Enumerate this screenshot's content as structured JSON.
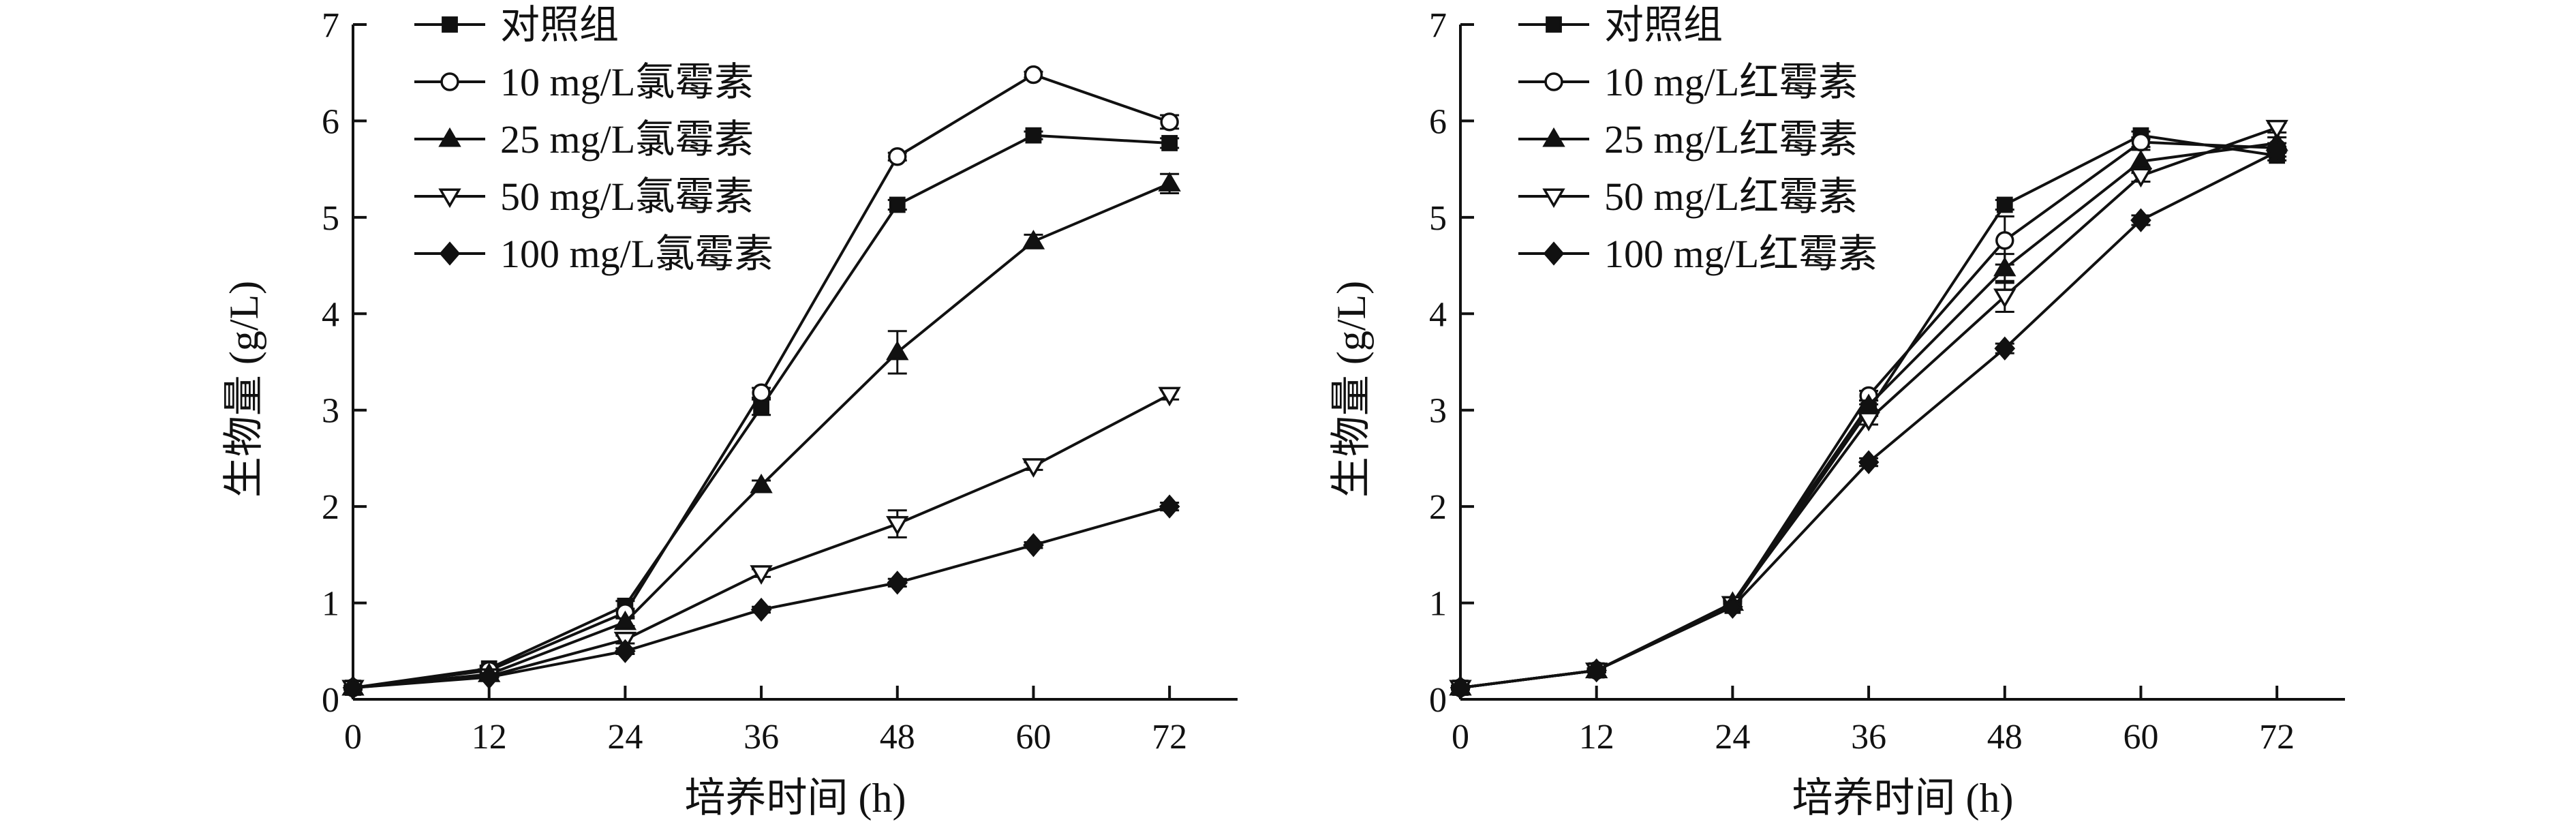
{
  "chart_data": [
    {
      "type": "line",
      "title": "",
      "xlabel": "培养时间 (h)",
      "ylabel": "生物量 (g/L)",
      "x": [
        0,
        12,
        24,
        36,
        48,
        60,
        72
      ],
      "xticks": [
        0,
        12,
        24,
        36,
        48,
        60,
        72
      ],
      "yticks": [
        0,
        1,
        2,
        3,
        4,
        5,
        6,
        7
      ],
      "xlim": [
        0,
        78
      ],
      "ylim": [
        0,
        7
      ],
      "grid": false,
      "legend_position": "top-left",
      "series": [
        {
          "name": "对照组",
          "marker": "square-filled",
          "values": [
            0.12,
            0.32,
            0.97,
            3.03,
            5.13,
            5.85,
            5.77
          ],
          "errors": [
            0.02,
            0.03,
            0.05,
            0.08,
            0.05,
            0.04,
            0.05
          ]
        },
        {
          "name": "10 mg/L氯霉素",
          "marker": "circle-open",
          "values": [
            0.12,
            0.3,
            0.9,
            3.18,
            5.63,
            6.48,
            5.99
          ],
          "errors": [
            0.02,
            0.03,
            0.04,
            0.05,
            0.04,
            0.03,
            0.07
          ]
        },
        {
          "name": "25 mg/L氯霉素",
          "marker": "triangle-up-filled",
          "values": [
            0.12,
            0.26,
            0.8,
            2.22,
            3.6,
            4.75,
            5.35
          ],
          "errors": [
            0.02,
            0.02,
            0.04,
            0.05,
            0.22,
            0.07,
            0.1
          ]
        },
        {
          "name": "50 mg/L氯霉素",
          "marker": "triangle-down-open",
          "values": [
            0.12,
            0.24,
            0.62,
            1.31,
            1.82,
            2.42,
            3.16
          ],
          "errors": [
            0.02,
            0.02,
            0.04,
            0.04,
            0.14,
            0.04,
            0.05
          ]
        },
        {
          "name": "100 mg/L氯霉素",
          "marker": "diamond-filled",
          "values": [
            0.12,
            0.23,
            0.5,
            0.93,
            1.21,
            1.6,
            2.0
          ],
          "errors": [
            0.02,
            0.02,
            0.03,
            0.03,
            0.04,
            0.03,
            0.04
          ]
        }
      ]
    },
    {
      "type": "line",
      "title": "",
      "xlabel": "培养时间 (h)",
      "ylabel": "生物量 (g/L)",
      "x": [
        0,
        12,
        24,
        36,
        48,
        60,
        72
      ],
      "xticks": [
        0,
        12,
        24,
        36,
        48,
        60,
        72
      ],
      "yticks": [
        0,
        1,
        2,
        3,
        4,
        5,
        6,
        7
      ],
      "xlim": [
        0,
        78
      ],
      "ylim": [
        0,
        7
      ],
      "grid": false,
      "legend_position": "top-left",
      "series": [
        {
          "name": "对照组",
          "marker": "square-filled",
          "values": [
            0.12,
            0.3,
            0.97,
            3.0,
            5.13,
            5.85,
            5.64
          ],
          "errors": [
            0.02,
            0.02,
            0.04,
            0.06,
            0.05,
            0.04,
            0.05
          ]
        },
        {
          "name": "10 mg/L红霉素",
          "marker": "circle-open",
          "values": [
            0.12,
            0.3,
            0.98,
            3.15,
            4.76,
            5.78,
            5.72
          ],
          "errors": [
            0.02,
            0.02,
            0.04,
            0.05,
            0.25,
            0.05,
            0.05
          ]
        },
        {
          "name": "25 mg/L红霉素",
          "marker": "triangle-up-filled",
          "values": [
            0.12,
            0.3,
            1.0,
            3.05,
            4.47,
            5.58,
            5.77
          ],
          "errors": [
            0.02,
            0.02,
            0.04,
            0.05,
            0.15,
            0.12,
            0.06
          ]
        },
        {
          "name": "50 mg/L红霉素",
          "marker": "triangle-down-open",
          "values": [
            0.12,
            0.3,
            0.99,
            2.9,
            4.18,
            5.43,
            5.93
          ],
          "errors": [
            0.02,
            0.02,
            0.04,
            0.05,
            0.16,
            0.06,
            0.05
          ]
        },
        {
          "name": "100 mg/L红霉素",
          "marker": "diamond-filled",
          "values": [
            0.12,
            0.3,
            0.96,
            2.46,
            3.64,
            4.97,
            5.68
          ],
          "errors": [
            0.02,
            0.02,
            0.03,
            0.04,
            0.05,
            0.05,
            0.05
          ]
        }
      ]
    }
  ]
}
